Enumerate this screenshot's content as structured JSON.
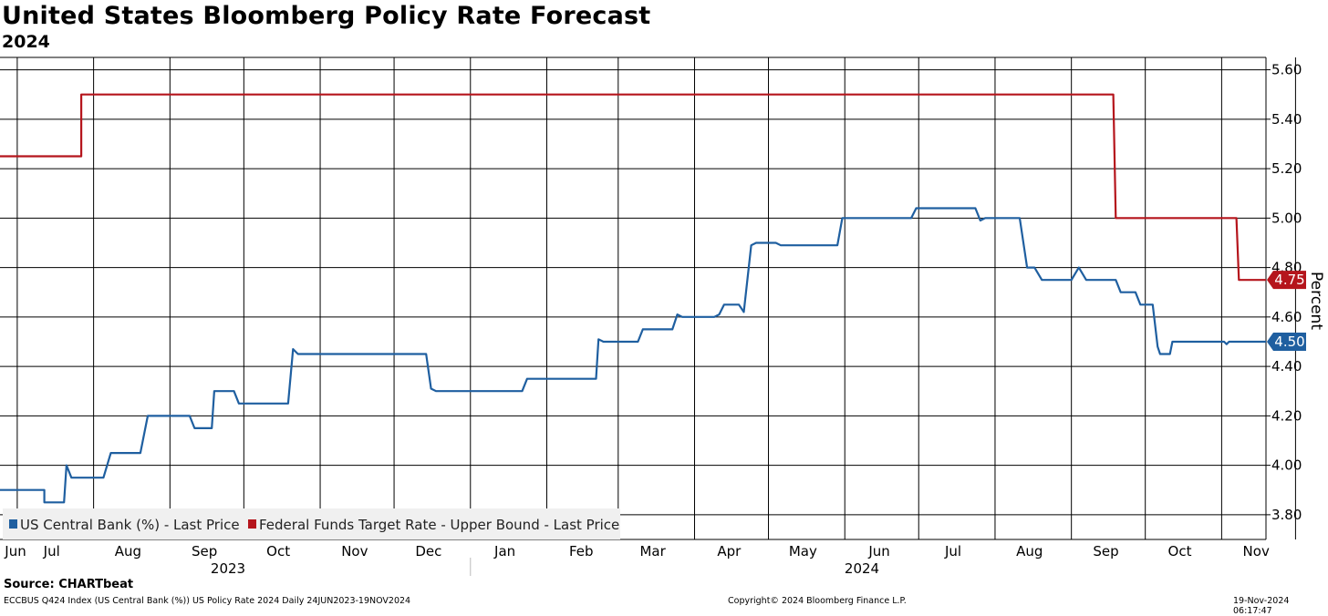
{
  "header": {
    "title": "United States Bloomberg Policy Rate Forecast",
    "subtitle": "2024"
  },
  "footer": {
    "source": "Source: CHARTbeat",
    "index_info": "ECCBUS Q424 Index (US Central Bank (%)) US Policy Rate 2024  Daily 24JUN2023-19NOV2024",
    "copyright": "Copyright© 2024 Bloomberg Finance L.P.",
    "timestamp": "19-Nov-2024 06:17:47"
  },
  "chart_data": {
    "type": "line",
    "ylabel": "Percent",
    "ylim": [
      3.7,
      5.65
    ],
    "yticks": [
      "3.80",
      "4.00",
      "4.20",
      "4.40",
      "4.60",
      "4.80",
      "5.00",
      "5.20",
      "5.40",
      "5.60"
    ],
    "x_month_labels": [
      "Jun",
      "Jul",
      "Aug",
      "Sep",
      "Oct",
      "Nov",
      "Dec",
      "Jan",
      "Feb",
      "Mar",
      "Apr",
      "May",
      "Jun",
      "Jul",
      "Aug",
      "Sep",
      "Oct",
      "Nov"
    ],
    "x_year_labels": [
      "2023",
      "2024"
    ],
    "grid": true,
    "legend_position": "bottom-left",
    "series": [
      {
        "name": "US Central Bank (%) - Last Price",
        "color": "#1f5fa0",
        "last_value": "4.50",
        "points": [
          [
            "2023-06-24",
            3.9
          ],
          [
            "2023-07-12",
            3.9
          ],
          [
            "2023-07-12",
            3.85
          ],
          [
            "2023-07-20",
            3.85
          ],
          [
            "2023-07-21",
            4.0
          ],
          [
            "2023-07-23",
            3.95
          ],
          [
            "2023-08-05",
            3.95
          ],
          [
            "2023-08-08",
            4.05
          ],
          [
            "2023-08-20",
            4.05
          ],
          [
            "2023-08-23",
            4.2
          ],
          [
            "2023-09-09",
            4.2
          ],
          [
            "2023-09-11",
            4.15
          ],
          [
            "2023-09-18",
            4.15
          ],
          [
            "2023-09-19",
            4.3
          ],
          [
            "2023-09-27",
            4.3
          ],
          [
            "2023-09-29",
            4.25
          ],
          [
            "2023-10-19",
            4.25
          ],
          [
            "2023-10-21",
            4.47
          ],
          [
            "2023-10-23",
            4.45
          ],
          [
            "2023-12-14",
            4.45
          ],
          [
            "2023-12-16",
            4.31
          ],
          [
            "2023-12-18",
            4.3
          ],
          [
            "2024-01-22",
            4.3
          ],
          [
            "2024-01-24",
            4.35
          ],
          [
            "2024-02-21",
            4.35
          ],
          [
            "2024-02-22",
            4.51
          ],
          [
            "2024-02-24",
            4.5
          ],
          [
            "2024-03-09",
            4.5
          ],
          [
            "2024-03-11",
            4.55
          ],
          [
            "2024-03-23",
            4.55
          ],
          [
            "2024-03-25",
            4.61
          ],
          [
            "2024-03-27",
            4.6
          ],
          [
            "2024-04-09",
            4.6
          ],
          [
            "2024-04-11",
            4.61
          ],
          [
            "2024-04-13",
            4.65
          ],
          [
            "2024-04-19",
            4.65
          ],
          [
            "2024-04-21",
            4.62
          ],
          [
            "2024-04-24",
            4.89
          ],
          [
            "2024-04-26",
            4.9
          ],
          [
            "2024-05-04",
            4.9
          ],
          [
            "2024-05-06",
            4.89
          ],
          [
            "2024-05-29",
            4.89
          ],
          [
            "2024-05-31",
            5.0
          ],
          [
            "2024-06-28",
            5.0
          ],
          [
            "2024-06-30",
            5.04
          ],
          [
            "2024-07-24",
            5.04
          ],
          [
            "2024-07-26",
            4.99
          ],
          [
            "2024-07-28",
            5.0
          ],
          [
            "2024-08-11",
            5.0
          ],
          [
            "2024-08-14",
            4.8
          ],
          [
            "2024-08-17",
            4.8
          ],
          [
            "2024-08-20",
            4.75
          ],
          [
            "2024-09-01",
            4.75
          ],
          [
            "2024-09-04",
            4.8
          ],
          [
            "2024-09-07",
            4.75
          ],
          [
            "2024-09-19",
            4.75
          ],
          [
            "2024-09-21",
            4.7
          ],
          [
            "2024-09-27",
            4.7
          ],
          [
            "2024-09-29",
            4.65
          ],
          [
            "2024-10-04",
            4.65
          ],
          [
            "2024-10-06",
            4.48
          ],
          [
            "2024-10-07",
            4.45
          ],
          [
            "2024-10-11",
            4.45
          ],
          [
            "2024-10-12",
            4.5
          ],
          [
            "2024-11-02",
            4.5
          ],
          [
            "2024-11-03",
            4.49
          ],
          [
            "2024-11-04",
            4.5
          ],
          [
            "2024-11-19",
            4.5
          ]
        ]
      },
      {
        "name": "Federal Funds Target Rate - Upper Bound - Last Price",
        "color": "#b5151c",
        "last_value": "4.75",
        "points": [
          [
            "2023-06-24",
            5.25
          ],
          [
            "2023-07-27",
            5.25
          ],
          [
            "2023-07-27",
            5.5
          ],
          [
            "2024-09-18",
            5.5
          ],
          [
            "2024-09-19",
            5.0
          ],
          [
            "2024-11-07",
            5.0
          ],
          [
            "2024-11-08",
            4.75
          ],
          [
            "2024-11-19",
            4.75
          ]
        ]
      }
    ]
  }
}
